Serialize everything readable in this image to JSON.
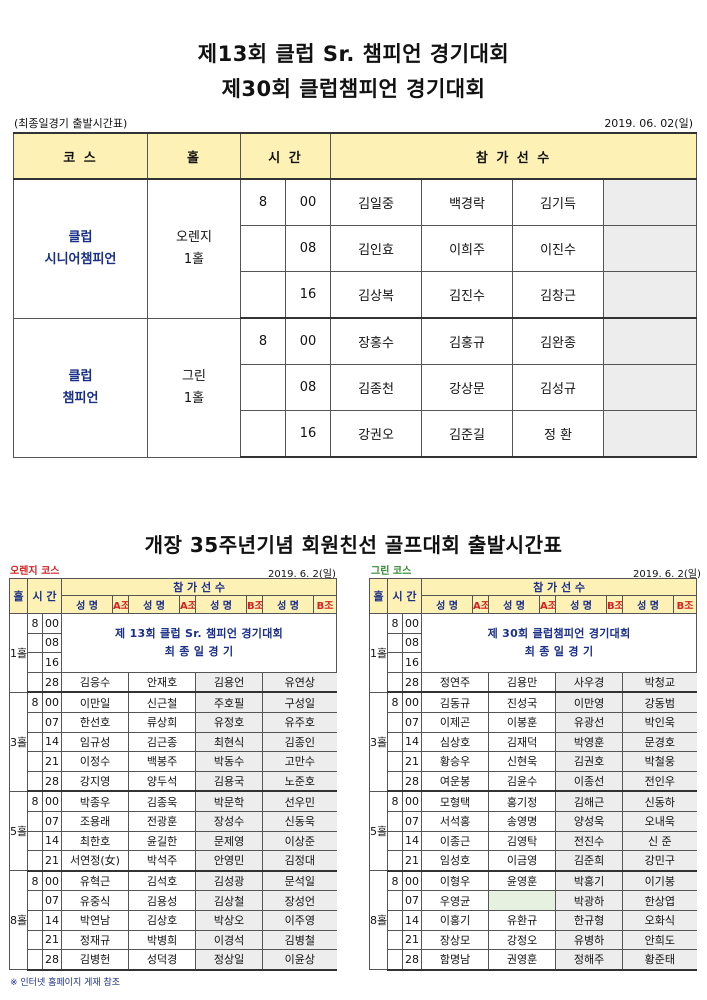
{
  "header": {
    "title_line1": "제13회 클럽 Sr. 챔피언 경기대회",
    "title_line2": "제30회 클럽챔피언 경기대회",
    "subtitle": "(최종일경기 출발시간표)",
    "date": "2019. 06. 02(일)"
  },
  "top_table": {
    "col_course": "코   스",
    "col_hole": "홀",
    "col_time": "시   간",
    "col_players": "참   가   선   수",
    "blocks": [
      {
        "course_line1": "클럽",
        "course_line2": "시니어챔피언",
        "hole_line1": "오렌지",
        "hole_line2": "1홀",
        "rows": [
          {
            "hour": "8",
            "min": "00",
            "players": [
              "김일중",
              "백경락",
              "김기득"
            ]
          },
          {
            "hour": "",
            "min": "08",
            "players": [
              "김인효",
              "이희주",
              "이진수"
            ]
          },
          {
            "hour": "",
            "min": "16",
            "players": [
              "김상복",
              "김진수",
              "김창근"
            ]
          }
        ]
      },
      {
        "course_line1": "클럽",
        "course_line2": "챔피언",
        "hole_line1": "그린",
        "hole_line2": "1홀",
        "rows": [
          {
            "hour": "8",
            "min": "00",
            "players": [
              "장홍수",
              "김홍규",
              "김완종"
            ]
          },
          {
            "hour": "",
            "min": "08",
            "players": [
              "김종천",
              "강상문",
              "김성규"
            ]
          },
          {
            "hour": "",
            "min": "16",
            "players": [
              "강권오",
              "김준길",
              "정   환"
            ]
          }
        ]
      }
    ]
  },
  "section2": {
    "title": "개장 35주년기념 회원친선 골프대회 출발시간표",
    "footnote": "※ 인터넷 홈페이지 게재 참조"
  },
  "schedules": [
    {
      "course_label": "오렌지 코스",
      "date": "2019. 6. 2(일)",
      "col_hole": "홀",
      "col_time": "시 간",
      "col_players": "참   가   선   수",
      "sub_headers": [
        "성 명",
        "A조",
        "성 명",
        "A조",
        "성 명",
        "B조",
        "성 명",
        "B조"
      ],
      "note_line1": "제 13회 클럽 Sr. 챔피언 경기대회",
      "note_line2": "최  종  일  경  기",
      "holes": [
        {
          "hole": "1홀",
          "rows": [
            {
              "hour": "8",
              "min": "00",
              "players": []
            },
            {
              "hour": "",
              "min": "08",
              "players": []
            },
            {
              "hour": "",
              "min": "16",
              "players": []
            },
            {
              "hour": "",
              "min": "28",
              "players": [
                "김응수",
                "안재호",
                "김용언",
                "유연상"
              ]
            }
          ]
        },
        {
          "hole": "3홀",
          "rows": [
            {
              "hour": "8",
              "min": "00",
              "players": [
                "이만일",
                "신근철",
                "주호필",
                "구성일"
              ]
            },
            {
              "hour": "",
              "min": "07",
              "players": [
                "한선호",
                "류상희",
                "유정호",
                "유주호"
              ]
            },
            {
              "hour": "",
              "min": "14",
              "players": [
                "임규성",
                "김근종",
                "최현식",
                "김종인"
              ]
            },
            {
              "hour": "",
              "min": "21",
              "players": [
                "이정수",
                "백봉주",
                "박동수",
                "고만수"
              ]
            },
            {
              "hour": "",
              "min": "28",
              "players": [
                "강지영",
                "양두석",
                "김용국",
                "노준호"
              ]
            }
          ]
        },
        {
          "hole": "5홀",
          "rows": [
            {
              "hour": "8",
              "min": "00",
              "players": [
                "박종우",
                "김종욱",
                "박문학",
                "선우민"
              ]
            },
            {
              "hour": "",
              "min": "07",
              "players": [
                "조용래",
                "전광훈",
                "장성수",
                "신동욱"
              ]
            },
            {
              "hour": "",
              "min": "14",
              "players": [
                "최한호",
                "윤길한",
                "문제영",
                "이상준"
              ]
            },
            {
              "hour": "",
              "min": "21",
              "players": [
                "서연정(女)",
                "박석주",
                "안영민",
                "김정대"
              ]
            }
          ]
        },
        {
          "hole": "8홀",
          "rows": [
            {
              "hour": "8",
              "min": "00",
              "players": [
                "유혁근",
                "김석호",
                "김성광",
                "문석일"
              ]
            },
            {
              "hour": "",
              "min": "07",
              "players": [
                "유중식",
                "김용성",
                "김상철",
                "장성언"
              ]
            },
            {
              "hour": "",
              "min": "14",
              "players": [
                "박연남",
                "김상호",
                "박상오",
                "이주영"
              ]
            },
            {
              "hour": "",
              "min": "21",
              "players": [
                "정재규",
                "박병희",
                "이경석",
                "김병철"
              ]
            },
            {
              "hour": "",
              "min": "28",
              "players": [
                "김병헌",
                "성덕경",
                "정상일",
                "이윤상"
              ]
            }
          ]
        }
      ]
    },
    {
      "course_label": "그린 코스",
      "date": "2019. 6. 2(일)",
      "col_hole": "홀",
      "col_time": "시 간",
      "col_players": "참   가   선   수",
      "sub_headers": [
        "성 명",
        "A조",
        "성 명",
        "A조",
        "성 명",
        "B조",
        "성 명",
        "B조"
      ],
      "note_line1": "제 30회 클럽챔피언 경기대회",
      "note_line2": "최  종  일  경  기",
      "holes": [
        {
          "hole": "1홀",
          "rows": [
            {
              "hour": "8",
              "min": "00",
              "players": []
            },
            {
              "hour": "",
              "min": "08",
              "players": []
            },
            {
              "hour": "",
              "min": "16",
              "players": []
            },
            {
              "hour": "",
              "min": "28",
              "players": [
                "정연주",
                "김용만",
                "사우경",
                "박청교"
              ]
            }
          ]
        },
        {
          "hole": "3홀",
          "rows": [
            {
              "hour": "8",
              "min": "00",
              "players": [
                "김동규",
                "진성국",
                "이만영",
                "강동범"
              ]
            },
            {
              "hour": "",
              "min": "07",
              "players": [
                "이제곤",
                "이봉훈",
                "유광선",
                "박인욱"
              ]
            },
            {
              "hour": "",
              "min": "14",
              "players": [
                "심상호",
                "김재덕",
                "박영훈",
                "문경호"
              ]
            },
            {
              "hour": "",
              "min": "21",
              "players": [
                "황승우",
                "신현욱",
                "김권호",
                "박철웅"
              ]
            },
            {
              "hour": "",
              "min": "28",
              "players": [
                "여운봉",
                "김윤수",
                "이종선",
                "전인우"
              ]
            }
          ]
        },
        {
          "hole": "5홀",
          "rows": [
            {
              "hour": "8",
              "min": "00",
              "players": [
                "모형택",
                "홍기정",
                "김해근",
                "신동하"
              ]
            },
            {
              "hour": "",
              "min": "07",
              "players": [
                "서석홍",
                "송영명",
                "양성욱",
                "오내욱"
              ]
            },
            {
              "hour": "",
              "min": "14",
              "players": [
                "이종근",
                "김영탁",
                "전진수",
                "신   준"
              ]
            },
            {
              "hour": "",
              "min": "21",
              "players": [
                "임성호",
                "이금영",
                "김준희",
                "강민구"
              ]
            }
          ]
        },
        {
          "hole": "8홀",
          "rows": [
            {
              "hour": "8",
              "min": "00",
              "players": [
                "이형우",
                "윤영훈",
                "박홍기",
                "이기봉"
              ]
            },
            {
              "hour": "",
              "min": "07",
              "players": [
                "우영균",
                "",
                "박광하",
                "한상엽"
              ]
            },
            {
              "hour": "",
              "min": "14",
              "players": [
                "이홍기",
                "유환규",
                "한규형",
                "오화식"
              ]
            },
            {
              "hour": "",
              "min": "21",
              "players": [
                "장상모",
                "강정오",
                "유병하",
                "안희도"
              ]
            },
            {
              "hour": "",
              "min": "28",
              "players": [
                "함명남",
                "권영훈",
                "정해주",
                "황준태"
              ]
            }
          ]
        }
      ]
    }
  ],
  "colors": {
    "header_fill": "#fdf1b6",
    "gray_fill": "#ededed",
    "blue_text": "#1a2f8a",
    "red_text": "#d42020",
    "green_text": "#2e8b2e"
  }
}
